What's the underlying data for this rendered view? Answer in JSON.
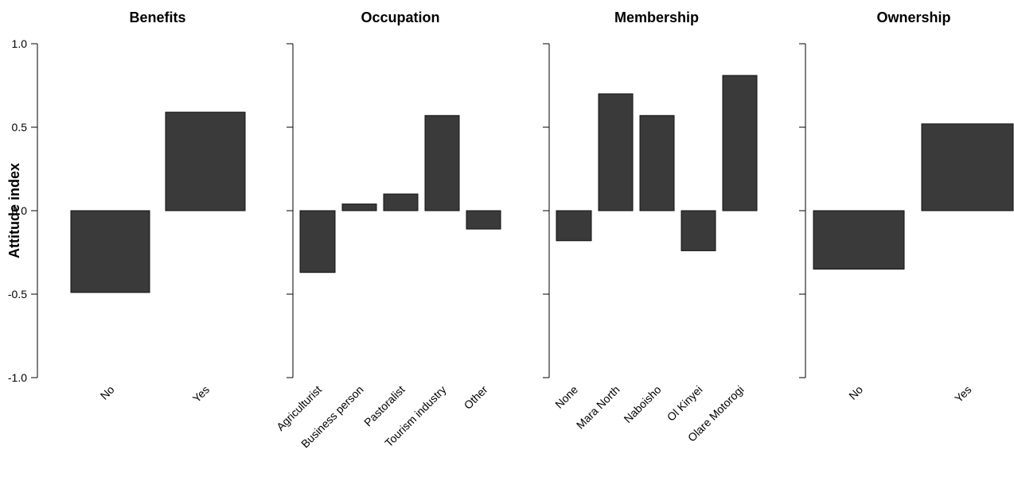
{
  "chart_data": {
    "type": "bar",
    "ylabel": "Attitude index",
    "ylim": [
      -1.0,
      1.0
    ],
    "yticks": [
      1.0,
      0.5,
      0.0,
      -0.5,
      -1.0
    ],
    "ytick_labels": [
      "1.0",
      "0.5",
      "0.0",
      "-0.5",
      "-1.0"
    ],
    "bar_color": "#3a3a3a",
    "panels": [
      {
        "title": "Benefits",
        "categories": [
          "No",
          "Yes"
        ],
        "values": [
          -0.49,
          0.59
        ]
      },
      {
        "title": "Occupation",
        "categories": [
          "Agriculturist",
          "Business person",
          "Pastoralist",
          "Tourism industry",
          "Other"
        ],
        "values": [
          -0.37,
          0.04,
          0.1,
          0.57,
          -0.11
        ]
      },
      {
        "title": "Membership",
        "categories": [
          "None",
          "Mara North",
          "Naboisho",
          "Ol Kinyei",
          "Olare Motorogi"
        ],
        "values": [
          -0.18,
          0.7,
          0.57,
          -0.24,
          0.81
        ]
      },
      {
        "title": "Ownership",
        "categories": [
          "No",
          "Yes"
        ],
        "values": [
          -0.35,
          0.52
        ]
      }
    ]
  }
}
